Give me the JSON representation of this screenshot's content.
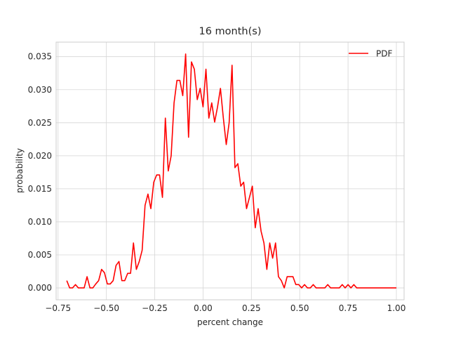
{
  "chart_data": {
    "type": "line",
    "title": "16 month(s)",
    "xlabel": "percent change",
    "ylabel": "probability",
    "xlim": [
      -0.76,
      1.04
    ],
    "ylim": [
      -0.0018,
      0.0372
    ],
    "xticks": [
      -0.75,
      -0.5,
      -0.25,
      0.0,
      0.25,
      0.5,
      0.75,
      1.0
    ],
    "xtick_labels": [
      "−0.75",
      "−0.50",
      "−0.25",
      "0.00",
      "0.25",
      "0.50",
      "0.75",
      "1.00"
    ],
    "yticks": [
      0.0,
      0.005,
      0.01,
      0.015,
      0.02,
      0.025,
      0.03,
      0.035
    ],
    "ytick_labels": [
      "0.000",
      "0.005",
      "0.010",
      "0.015",
      "0.020",
      "0.025",
      "0.030",
      "0.035"
    ],
    "grid": true,
    "legend": {
      "position": "top-right",
      "entries": [
        "PDF"
      ]
    },
    "colors": {
      "line": "#ff0000",
      "grid": "#d6d6d6",
      "frame": "#cccccc",
      "text": "#262626"
    },
    "series": [
      {
        "name": "PDF",
        "x": [
          -0.705,
          -0.69,
          -0.675,
          -0.66,
          -0.645,
          -0.63,
          -0.615,
          -0.6,
          -0.585,
          -0.57,
          -0.555,
          -0.54,
          -0.525,
          -0.51,
          -0.495,
          -0.48,
          -0.465,
          -0.45,
          -0.435,
          -0.42,
          -0.405,
          -0.39,
          -0.375,
          -0.36,
          -0.345,
          -0.33,
          -0.315,
          -0.3,
          -0.285,
          -0.27,
          -0.255,
          -0.24,
          -0.225,
          -0.21,
          -0.195,
          -0.18,
          -0.165,
          -0.15,
          -0.135,
          -0.12,
          -0.105,
          -0.09,
          -0.075,
          -0.06,
          -0.045,
          -0.03,
          -0.015,
          0.0,
          0.015,
          0.03,
          0.045,
          0.06,
          0.075,
          0.09,
          0.105,
          0.12,
          0.135,
          0.15,
          0.165,
          0.18,
          0.195,
          0.21,
          0.225,
          0.24,
          0.255,
          0.27,
          0.285,
          0.3,
          0.315,
          0.33,
          0.345,
          0.36,
          0.375,
          0.39,
          0.405,
          0.42,
          0.435,
          0.45,
          0.465,
          0.48,
          0.495,
          0.51,
          0.525,
          0.54,
          0.555,
          0.57,
          0.585,
          0.6,
          0.615,
          0.63,
          0.645,
          0.66,
          0.675,
          0.69,
          0.705,
          0.72,
          0.735,
          0.75,
          0.765,
          0.78,
          0.795,
          0.81,
          0.825,
          0.84,
          0.855,
          0.87,
          0.885,
          0.9,
          0.915,
          0.93,
          0.945,
          0.96,
          0.975,
          0.99,
          1.0
        ],
        "y": [
          0.0011,
          0.0,
          0.0,
          0.0005,
          0.0,
          0.0,
          0.0,
          0.0017,
          0.0,
          0.0,
          0.0006,
          0.0011,
          0.0028,
          0.0023,
          0.0006,
          0.0006,
          0.0011,
          0.0034,
          0.004,
          0.0011,
          0.0011,
          0.0022,
          0.0022,
          0.0068,
          0.0028,
          0.004,
          0.0057,
          0.0125,
          0.0142,
          0.012,
          0.016,
          0.0171,
          0.0171,
          0.0137,
          0.0257,
          0.0177,
          0.02,
          0.028,
          0.0314,
          0.0314,
          0.0291,
          0.0354,
          0.0228,
          0.0342,
          0.0331,
          0.0285,
          0.0302,
          0.0274,
          0.0331,
          0.0257,
          0.028,
          0.0251,
          0.0274,
          0.0302,
          0.0257,
          0.0217,
          0.025,
          0.0337,
          0.0182,
          0.0188,
          0.0154,
          0.016,
          0.012,
          0.0137,
          0.0154,
          0.0091,
          0.012,
          0.0086,
          0.0068,
          0.0028,
          0.0068,
          0.0045,
          0.0068,
          0.0017,
          0.0011,
          0.0,
          0.0017,
          0.0017,
          0.0017,
          0.0005,
          0.0005,
          0.0,
          0.0005,
          0.0,
          0.0,
          0.0005,
          0.0,
          0.0,
          0.0,
          0.0,
          0.0005,
          0.0,
          0.0,
          0.0,
          0.0,
          0.0005,
          0.0,
          0.0005,
          0.0,
          0.0005,
          0.0,
          0.0,
          0.0,
          0.0,
          0.0,
          0.0,
          0.0,
          0.0,
          0.0,
          0.0,
          0.0,
          0.0,
          0.0,
          0.0,
          0.0
        ]
      }
    ]
  }
}
